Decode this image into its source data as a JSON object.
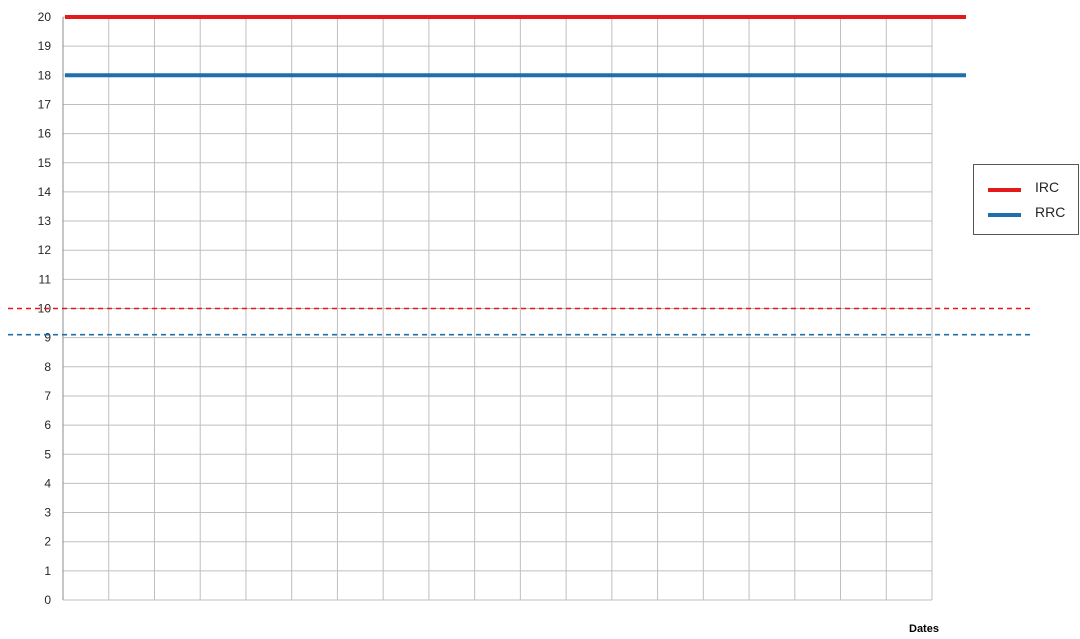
{
  "chart_data": {
    "type": "line",
    "xlabel": "Dates",
    "ylabel": "",
    "ylim": [
      0,
      20
    ],
    "yticks": [
      0,
      1,
      2,
      3,
      4,
      5,
      6,
      7,
      8,
      9,
      10,
      11,
      12,
      13,
      14,
      15,
      16,
      17,
      18,
      19,
      20
    ],
    "grid": true,
    "legend_position": "right",
    "series": [
      {
        "name": "IRC",
        "color": "#e3191c",
        "values": [
          20,
          20
        ]
      },
      {
        "name": "RRC",
        "color": "#1f6fad",
        "values": [
          18,
          18
        ]
      }
    ],
    "reference_lines": [
      {
        "value": 10,
        "color": "#e3191c",
        "style": "dashed"
      },
      {
        "value": 9.1,
        "color": "#1f6fad",
        "style": "dashed"
      }
    ]
  }
}
